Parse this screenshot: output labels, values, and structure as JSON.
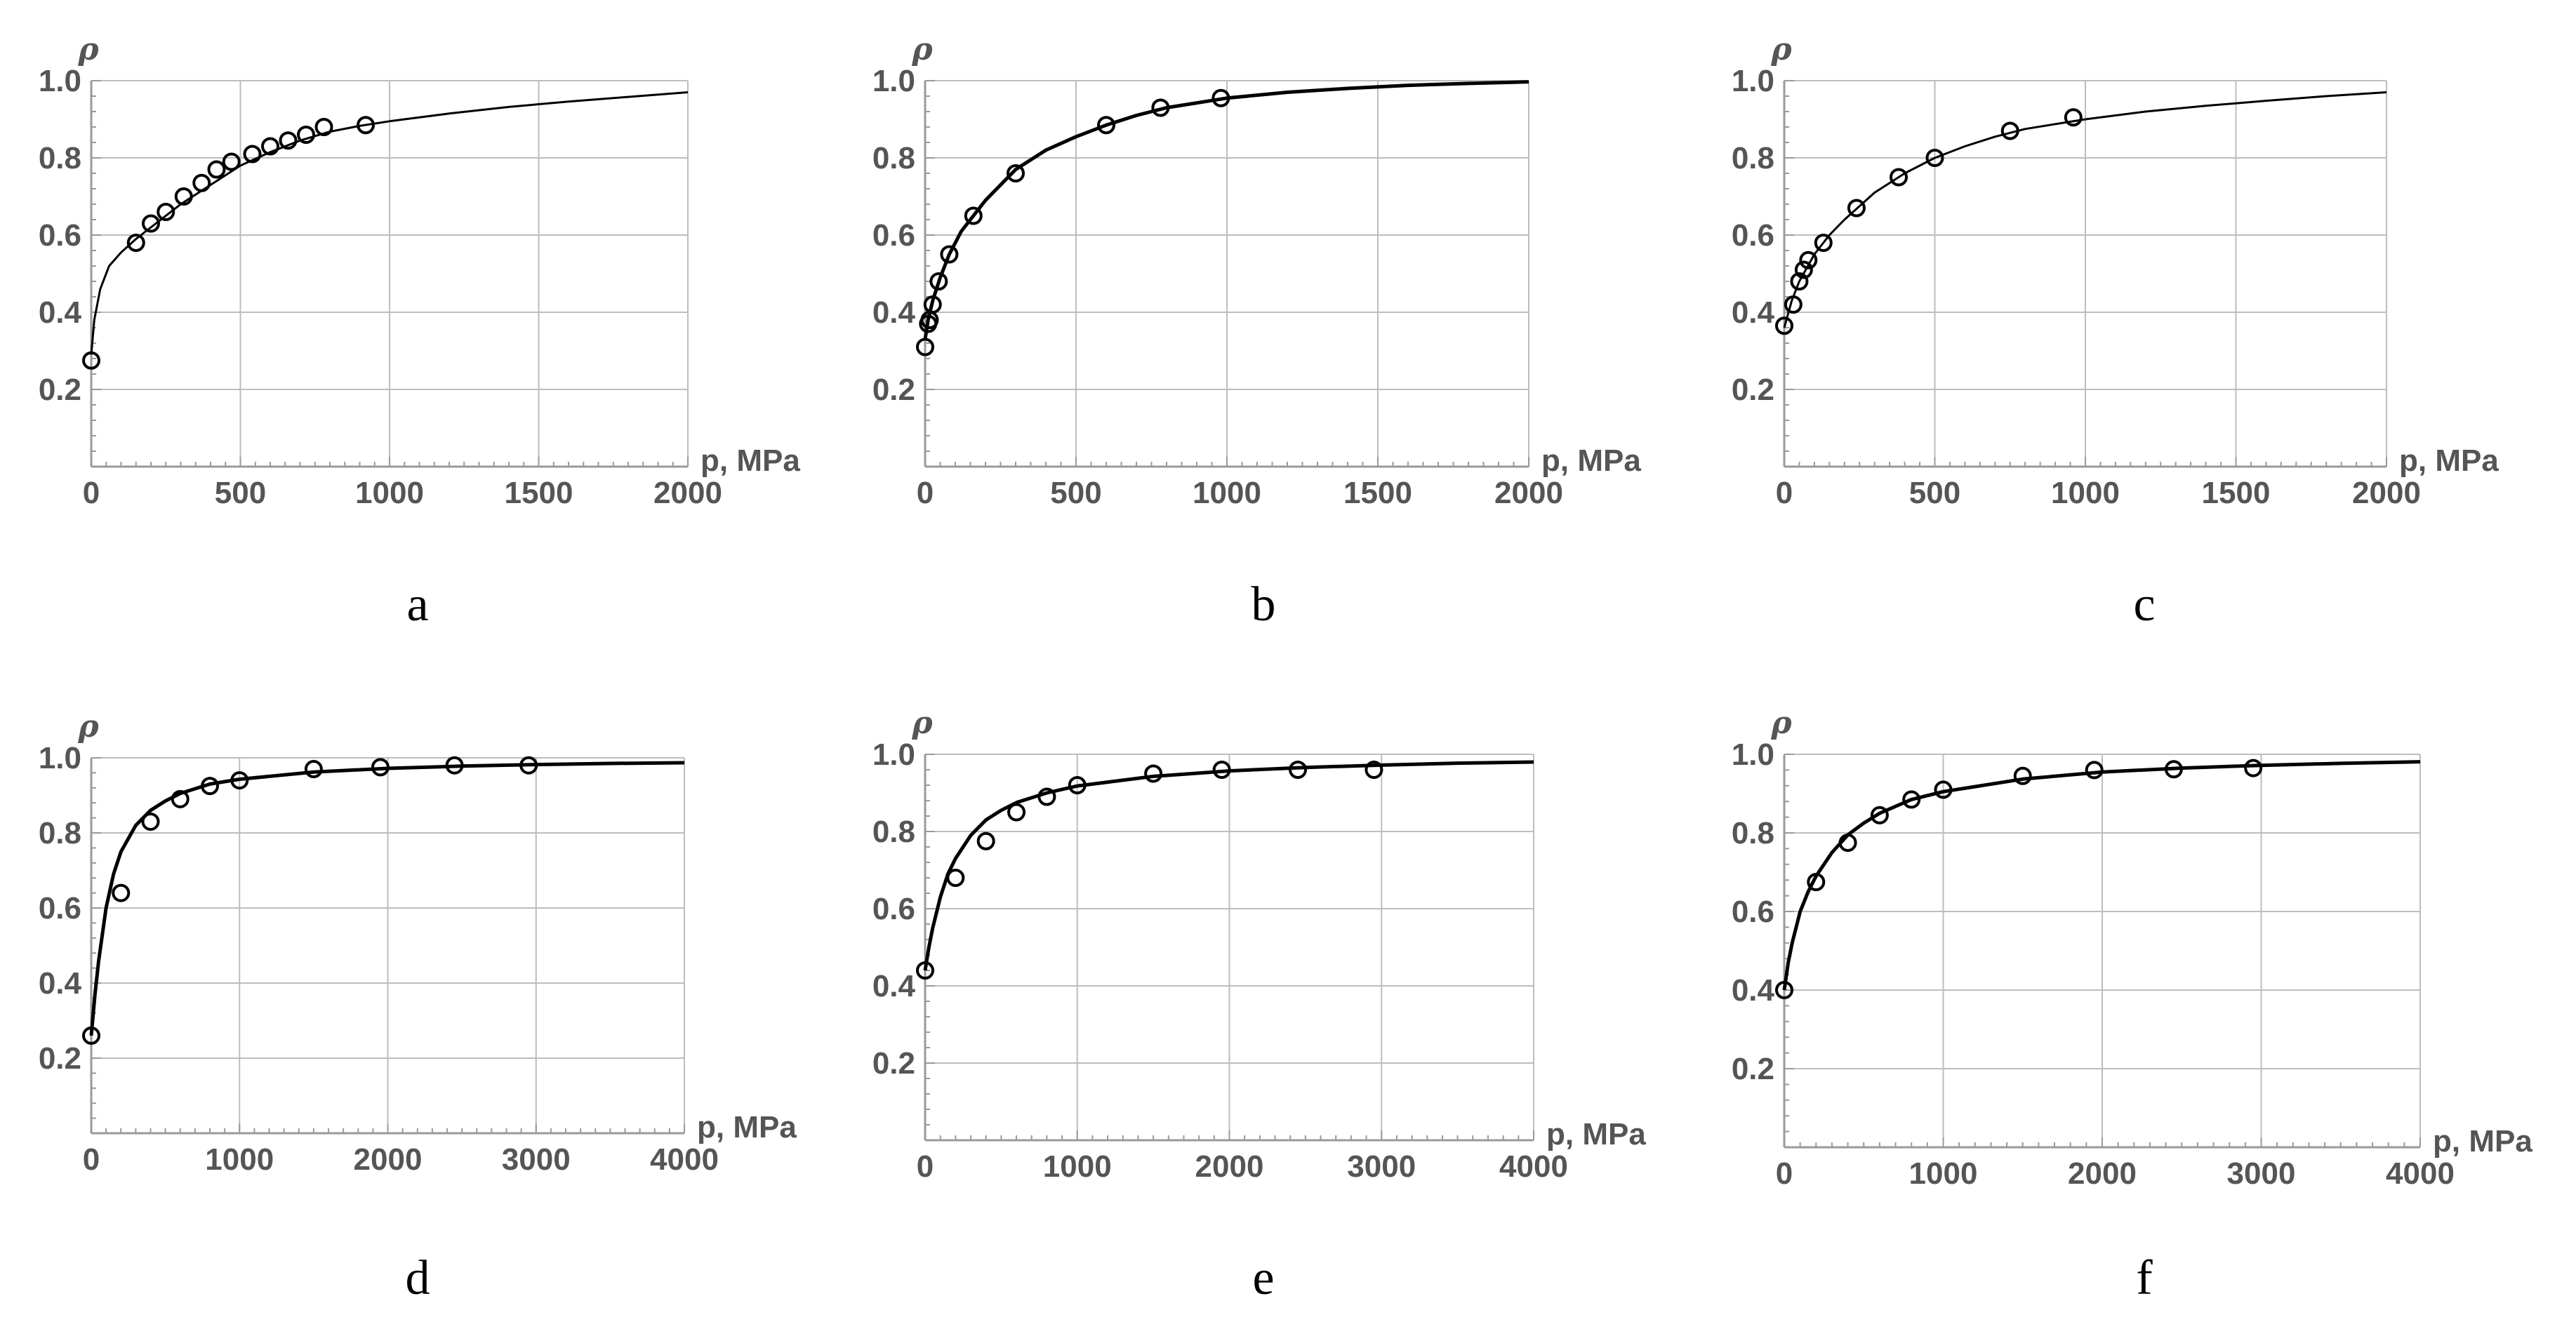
{
  "chart_data": [
    {
      "type": "scatter",
      "panel": "a",
      "caption": "a",
      "xlabel": "p, MPa",
      "ylabel": "ρ",
      "xlim": [
        0,
        2000
      ],
      "ylim": [
        0,
        1.0
      ],
      "x_ticks": [
        "0",
        "500",
        "1000",
        "1500",
        "2000"
      ],
      "y_ticks": [
        "0.2",
        "0.4",
        "0.6",
        "0.8",
        "1.0"
      ],
      "grid": true,
      "series": [
        {
          "kind": "points",
          "x": [
            0,
            150,
            200,
            250,
            310,
            370,
            420,
            470,
            540,
            600,
            660,
            720,
            780,
            920
          ],
          "y": [
            0.275,
            0.58,
            0.63,
            0.66,
            0.7,
            0.735,
            0.77,
            0.79,
            0.81,
            0.83,
            0.845,
            0.86,
            0.88,
            0.885
          ]
        },
        {
          "kind": "curve",
          "x": [
            0,
            10,
            30,
            60,
            100,
            150,
            200,
            300,
            400,
            500,
            600,
            700,
            800,
            900,
            1000,
            1200,
            1400,
            1600,
            1800,
            2000
          ],
          "y": [
            0.29,
            0.38,
            0.46,
            0.52,
            0.555,
            0.59,
            0.62,
            0.68,
            0.73,
            0.78,
            0.815,
            0.845,
            0.868,
            0.883,
            0.895,
            0.915,
            0.932,
            0.946,
            0.958,
            0.97
          ]
        }
      ]
    },
    {
      "type": "scatter",
      "panel": "b",
      "caption": "b",
      "xlabel": "p, MPa",
      "ylabel": "ρ",
      "xlim": [
        0,
        2000
      ],
      "ylim": [
        0,
        1.0
      ],
      "x_ticks": [
        "0",
        "500",
        "1000",
        "1500",
        "2000"
      ],
      "y_ticks": [
        "0.2",
        "0.4",
        "0.6",
        "0.8",
        "1.0"
      ],
      "grid": true,
      "series": [
        {
          "kind": "points",
          "x": [
            0,
            10,
            15,
            25,
            45,
            80,
            160,
            300,
            600,
            780,
            980
          ],
          "y": [
            0.31,
            0.37,
            0.38,
            0.42,
            0.48,
            0.55,
            0.65,
            0.76,
            0.885,
            0.93,
            0.955
          ]
        },
        {
          "kind": "curve",
          "x": [
            0,
            10,
            25,
            50,
            80,
            120,
            160,
            200,
            300,
            400,
            500,
            600,
            700,
            800,
            1000,
            1200,
            1400,
            1600,
            1800,
            2000
          ],
          "y": [
            0.33,
            0.38,
            0.43,
            0.49,
            0.55,
            0.61,
            0.65,
            0.69,
            0.77,
            0.82,
            0.855,
            0.885,
            0.91,
            0.93,
            0.955,
            0.97,
            0.98,
            0.988,
            0.993,
            0.997
          ]
        }
      ]
    },
    {
      "type": "scatter",
      "panel": "c",
      "caption": "c",
      "xlabel": "p, MPa",
      "ylabel": "ρ",
      "xlim": [
        0,
        2000
      ],
      "ylim": [
        0,
        1.0
      ],
      "x_ticks": [
        "0",
        "500",
        "1000",
        "1500",
        "2000"
      ],
      "y_ticks": [
        "0.2",
        "0.4",
        "0.6",
        "0.8",
        "1.0"
      ],
      "grid": true,
      "series": [
        {
          "kind": "points",
          "x": [
            0,
            30,
            50,
            65,
            80,
            130,
            240,
            380,
            500,
            750,
            960
          ],
          "y": [
            0.365,
            0.42,
            0.48,
            0.51,
            0.535,
            0.58,
            0.67,
            0.75,
            0.8,
            0.87,
            0.905
          ]
        },
        {
          "kind": "curve",
          "x": [
            0,
            25,
            50,
            100,
            150,
            200,
            300,
            400,
            500,
            600,
            700,
            800,
            1000,
            1200,
            1400,
            1600,
            1800,
            2000
          ],
          "y": [
            0.36,
            0.43,
            0.48,
            0.55,
            0.6,
            0.64,
            0.71,
            0.76,
            0.8,
            0.83,
            0.855,
            0.875,
            0.9,
            0.92,
            0.935,
            0.948,
            0.96,
            0.97
          ]
        }
      ]
    },
    {
      "type": "scatter",
      "panel": "d",
      "caption": "d",
      "xlabel": "p, MPa",
      "ylabel": "ρ",
      "xlim": [
        0,
        4000
      ],
      "ylim": [
        0,
        1.0
      ],
      "x_ticks": [
        "0",
        "1000",
        "2000",
        "3000",
        "4000"
      ],
      "y_ticks": [
        "0.2",
        "0.4",
        "0.6",
        "0.8",
        "1.0"
      ],
      "grid": true,
      "series": [
        {
          "kind": "points",
          "x": [
            0,
            200,
            400,
            600,
            800,
            1000,
            1500,
            1950,
            2450,
            2950
          ],
          "y": [
            0.26,
            0.64,
            0.83,
            0.89,
            0.925,
            0.94,
            0.97,
            0.975,
            0.98,
            0.98
          ]
        },
        {
          "kind": "curve",
          "x": [
            0,
            25,
            50,
            100,
            150,
            200,
            300,
            400,
            500,
            600,
            800,
            1000,
            1500,
            2000,
            2500,
            3000,
            3500,
            4000
          ],
          "y": [
            0.26,
            0.37,
            0.46,
            0.6,
            0.69,
            0.75,
            0.82,
            0.86,
            0.885,
            0.905,
            0.93,
            0.943,
            0.962,
            0.972,
            0.978,
            0.982,
            0.985,
            0.987
          ]
        }
      ]
    },
    {
      "type": "scatter",
      "panel": "e",
      "caption": "e",
      "xlabel": "p, MPa",
      "ylabel": "ρ",
      "xlim": [
        0,
        4000
      ],
      "ylim": [
        0,
        1.0
      ],
      "x_ticks": [
        "0",
        "1000",
        "2000",
        "3000",
        "4000"
      ],
      "y_ticks": [
        "0.2",
        "0.4",
        "0.6",
        "0.8",
        "1.0"
      ],
      "grid": true,
      "series": [
        {
          "kind": "points",
          "x": [
            0,
            200,
            400,
            600,
            800,
            1000,
            1500,
            1950,
            2450,
            2950
          ],
          "y": [
            0.44,
            0.68,
            0.775,
            0.85,
            0.89,
            0.92,
            0.95,
            0.96,
            0.96,
            0.96
          ]
        },
        {
          "kind": "curve",
          "x": [
            0,
            25,
            50,
            100,
            150,
            200,
            300,
            400,
            500,
            600,
            800,
            1000,
            1500,
            2000,
            2500,
            3000,
            3500,
            4000
          ],
          "y": [
            0.44,
            0.5,
            0.55,
            0.63,
            0.69,
            0.73,
            0.79,
            0.83,
            0.855,
            0.875,
            0.9,
            0.918,
            0.943,
            0.957,
            0.966,
            0.972,
            0.977,
            0.98
          ]
        }
      ]
    },
    {
      "type": "scatter",
      "panel": "f",
      "caption": "f",
      "xlabel": "p, MPa",
      "ylabel": "ρ",
      "xlim": [
        0,
        4000
      ],
      "ylim": [
        0,
        1.0
      ],
      "x_ticks": [
        "0",
        "1000",
        "2000",
        "3000",
        "4000"
      ],
      "y_ticks": [
        "0.2",
        "0.4",
        "0.6",
        "0.8",
        "1.0"
      ],
      "grid": true,
      "series": [
        {
          "kind": "points",
          "x": [
            0,
            200,
            400,
            600,
            800,
            1000,
            1500,
            1950,
            2450,
            2950
          ],
          "y": [
            0.4,
            0.675,
            0.775,
            0.845,
            0.885,
            0.91,
            0.945,
            0.96,
            0.962,
            0.965
          ]
        },
        {
          "kind": "curve",
          "x": [
            0,
            25,
            50,
            100,
            150,
            200,
            300,
            400,
            500,
            600,
            800,
            1000,
            1500,
            2000,
            2500,
            3000,
            3500,
            4000
          ],
          "y": [
            0.4,
            0.47,
            0.52,
            0.6,
            0.65,
            0.69,
            0.75,
            0.795,
            0.825,
            0.85,
            0.885,
            0.905,
            0.937,
            0.955,
            0.965,
            0.972,
            0.977,
            0.981
          ]
        }
      ]
    }
  ]
}
